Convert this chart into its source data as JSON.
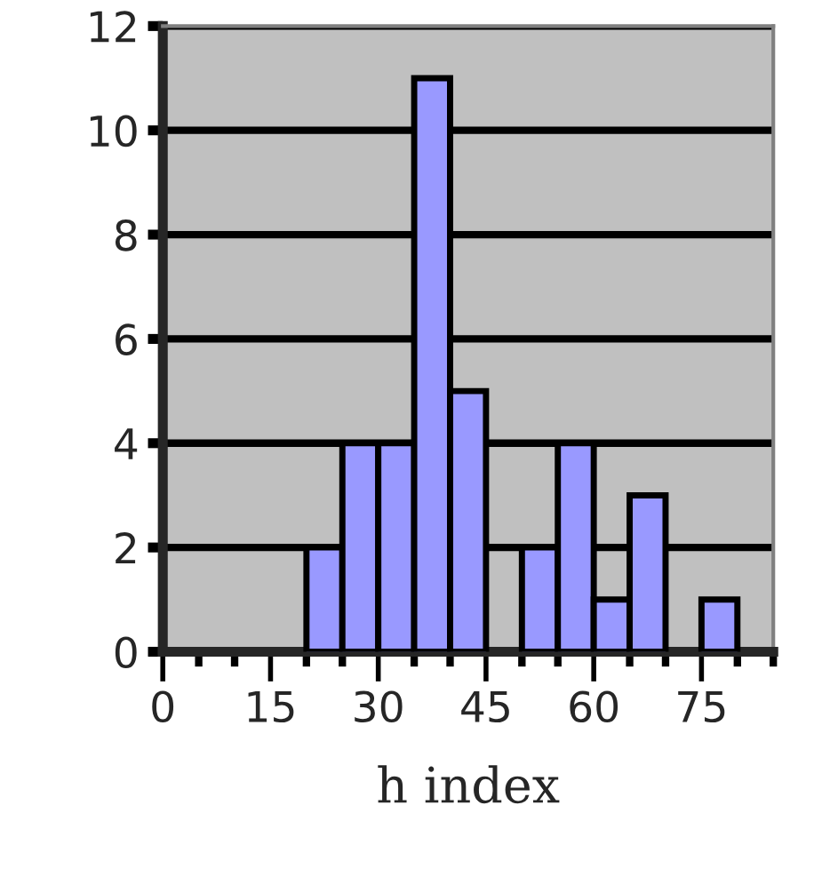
{
  "chart_data": {
    "type": "histogram",
    "xlabel": "h index",
    "bins": [
      0,
      5,
      10,
      15,
      20,
      25,
      30,
      35,
      40,
      45,
      50,
      55,
      60,
      65,
      70,
      75,
      80,
      85
    ],
    "values": [
      0,
      0,
      0,
      0,
      2,
      4,
      4,
      11,
      5,
      0,
      2,
      4,
      1,
      3,
      0,
      1,
      0
    ],
    "color": "#9999ff",
    "xlim": [
      0,
      85
    ],
    "xticks": [
      0,
      {
        "value": 5,
        "label": null
      },
      {
        "value": 10,
        "label": null
      },
      15,
      {
        "value": 20,
        "label": null
      },
      {
        "value": 25,
        "label": null
      },
      30,
      {
        "value": 35,
        "label": null
      },
      {
        "value": 40,
        "label": null
      },
      45,
      {
        "value": 50,
        "label": null
      },
      {
        "value": 55,
        "label": null
      },
      60,
      {
        "value": 65,
        "label": null
      },
      {
        "value": 70,
        "label": null
      },
      75,
      {
        "value": 80,
        "label": null
      },
      {
        "value": 85,
        "label": null
      }
    ],
    "ylim": [
      0,
      12
    ],
    "yticks": [
      0,
      2,
      4,
      6,
      8,
      10,
      12
    ],
    "grid": "y"
  }
}
